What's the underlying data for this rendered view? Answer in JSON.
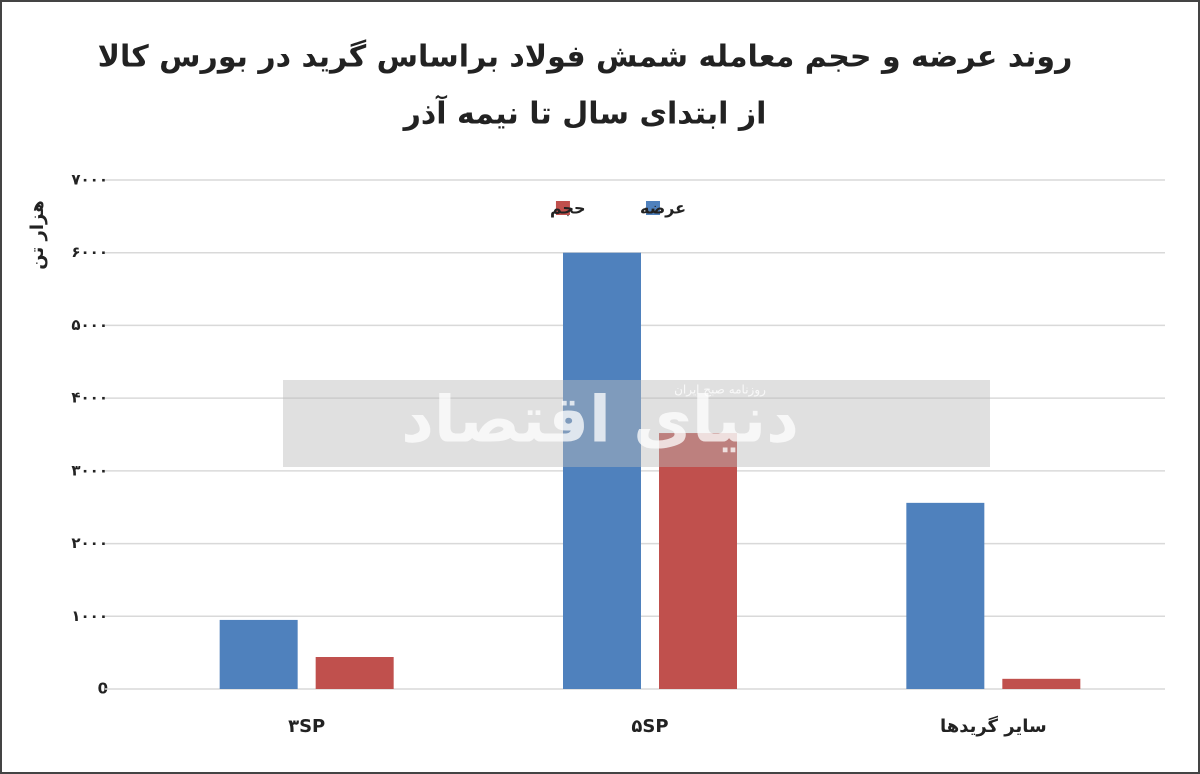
{
  "chart_data": {
    "type": "bar",
    "title": "روند عرضه و حجم معامله شمش فولاد براساس گرید در بورس کالا",
    "subtitle": "از ابتدای سال تا نیمه آذر",
    "y_label": "هزار تن",
    "categories": [
      "۳SP",
      "۵SP",
      "سایر گریدها"
    ],
    "series": [
      {
        "name": "عرضه",
        "color": "#4f81bd",
        "values": [
          950,
          6000,
          2560
        ]
      },
      {
        "name": "حجم",
        "color": "#c0504d",
        "values": [
          440,
          3520,
          140
        ]
      }
    ],
    "ylim": [
      0,
      7000
    ],
    "yticks": [
      {
        "value": 0,
        "label": "0"
      },
      {
        "value": 1000,
        "label": "۱۰۰۰"
      },
      {
        "value": 2000,
        "label": "۲۰۰۰"
      },
      {
        "value": 3000,
        "label": "۳۰۰۰"
      },
      {
        "value": 4000,
        "label": "۴۰۰۰"
      },
      {
        "value": 5000,
        "label": "۵۰۰۰"
      },
      {
        "value": 6000,
        "label": "۶۰۰۰"
      },
      {
        "value": 7000,
        "label": "۷۰۰۰"
      }
    ],
    "grid": true,
    "legend": "top",
    "watermark": {
      "name": "دنیای اقتصاد",
      "tagline": "روزنامه صبح ایران"
    }
  }
}
